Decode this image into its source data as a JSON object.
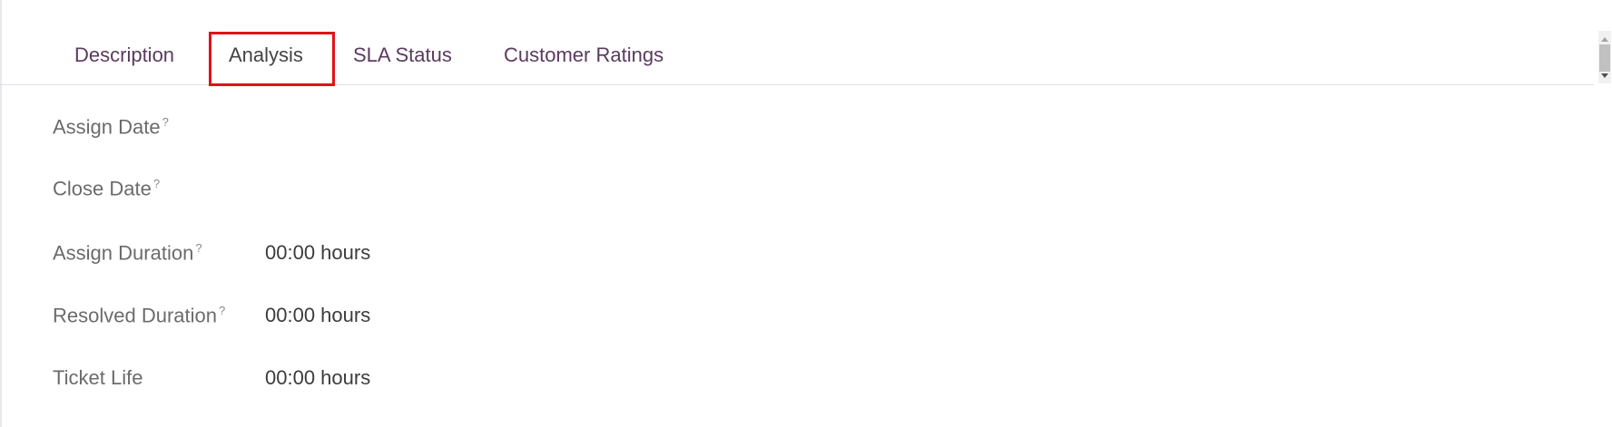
{
  "tabs": [
    {
      "label": "Description",
      "active": false
    },
    {
      "label": "Analysis",
      "active": true
    },
    {
      "label": "SLA Status",
      "active": false
    },
    {
      "label": "Customer Ratings",
      "active": false
    }
  ],
  "highlight_color": "#e0121a",
  "fields": [
    {
      "label": "Assign Date",
      "help": "?",
      "value": ""
    },
    {
      "label": "Close Date",
      "help": "?",
      "value": ""
    },
    {
      "label": "Assign Duration",
      "help": "?",
      "value": "00:00 hours"
    },
    {
      "label": "Resolved Duration",
      "help": "?",
      "value": "00:00 hours"
    },
    {
      "label": "Ticket Life",
      "value": "00:00 hours"
    }
  ]
}
